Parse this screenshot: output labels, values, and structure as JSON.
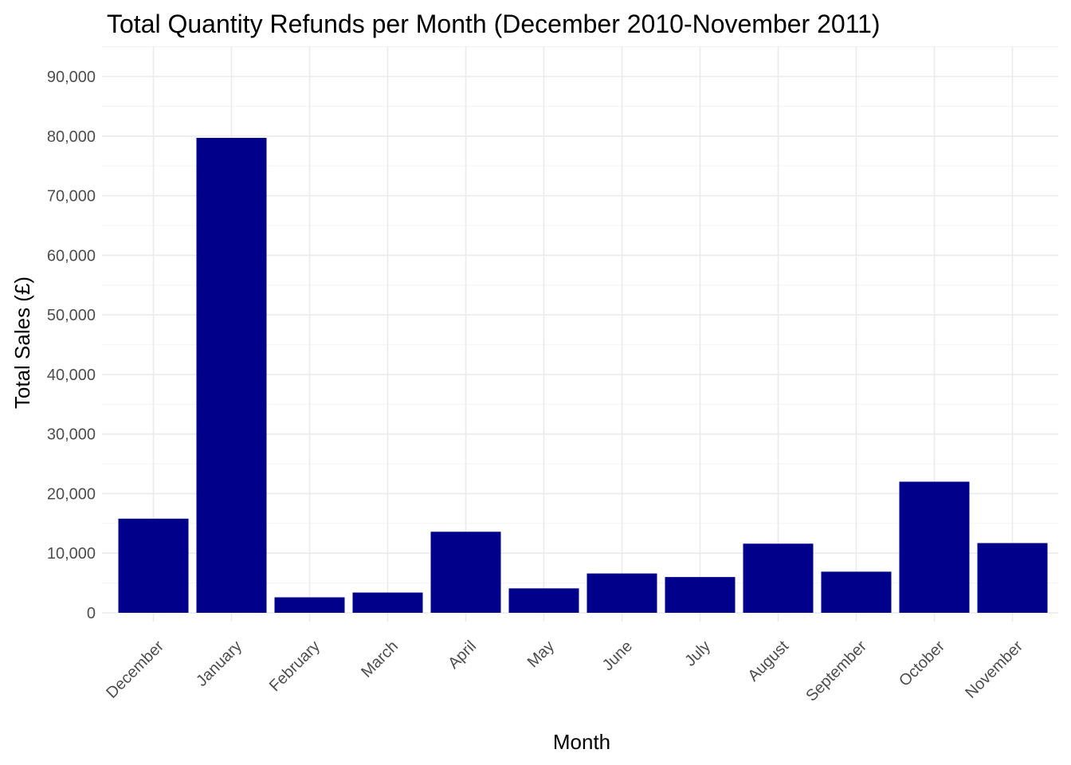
{
  "chart_data": {
    "type": "bar",
    "title": "Total Quantity Refunds per Month (December 2010-November 2011)",
    "xlabel": "Month",
    "ylabel": "Total Sales (£)",
    "categories": [
      "December",
      "January",
      "February",
      "March",
      "April",
      "May",
      "June",
      "July",
      "August",
      "September",
      "October",
      "November"
    ],
    "values": [
      15800,
      79700,
      2600,
      3400,
      13600,
      4100,
      6600,
      6000,
      11600,
      6900,
      22000,
      11700
    ],
    "ylim": [
      0,
      95000
    ],
    "yticks": [
      0,
      10000,
      20000,
      30000,
      40000,
      50000,
      60000,
      70000,
      80000,
      90000
    ],
    "ytick_labels": [
      "0",
      "10,000",
      "20,000",
      "30,000",
      "40,000",
      "50,000",
      "60,000",
      "70,000",
      "80,000",
      "90,000"
    ],
    "grid": true,
    "legend": "none",
    "colors": {
      "bar": "#00008B",
      "grid_major": "#ebebeb",
      "grid_minor": "#f5f5f5",
      "tick_text": "#4d4d4d"
    }
  }
}
